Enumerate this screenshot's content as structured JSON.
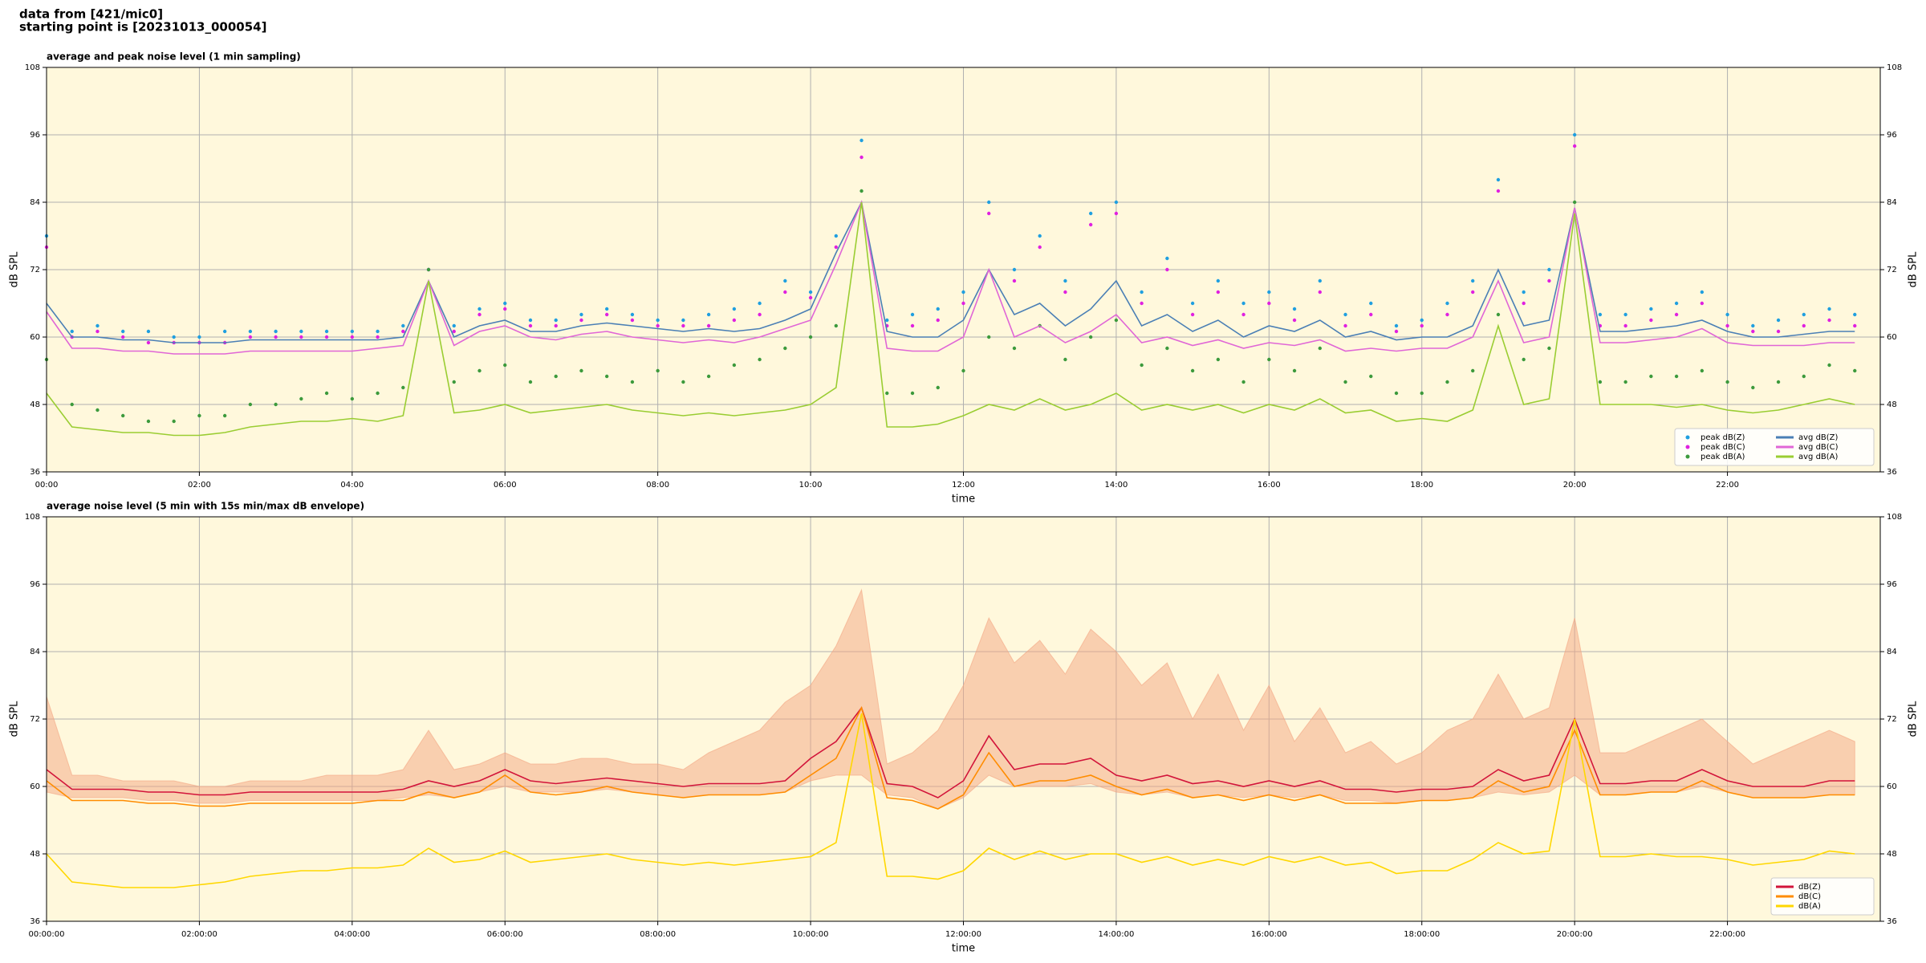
{
  "header": [
    "data from [421/mic0]",
    "starting point is [20231013_000054]"
  ],
  "chart_data": [
    {
      "type": "line",
      "title": "average and peak noise level (1 min sampling)",
      "xlabel": "time",
      "ylabel": "dB SPL",
      "grid": true,
      "legend": "lower right",
      "background": "#fff8dc",
      "xlim": [
        0,
        1440
      ],
      "ylim": [
        36,
        108
      ],
      "yticks": [
        36,
        48,
        60,
        72,
        84,
        96,
        108
      ],
      "xticks": [
        {
          "value": 0,
          "label": "00:00"
        },
        {
          "value": 120,
          "label": "02:00"
        },
        {
          "value": 240,
          "label": "04:00"
        },
        {
          "value": 360,
          "label": "06:00"
        },
        {
          "value": 480,
          "label": "08:00"
        },
        {
          "value": 600,
          "label": "10:00"
        },
        {
          "value": 720,
          "label": "12:00"
        },
        {
          "value": 840,
          "label": "14:00"
        },
        {
          "value": 960,
          "label": "16:00"
        },
        {
          "value": 1080,
          "label": "18:00"
        },
        {
          "value": 1200,
          "label": "20:00"
        },
        {
          "value": 1320,
          "label": "22:00"
        }
      ],
      "x": [
        0,
        20,
        40,
        60,
        80,
        100,
        120,
        140,
        160,
        180,
        200,
        220,
        240,
        260,
        280,
        300,
        320,
        340,
        360,
        380,
        400,
        420,
        440,
        460,
        480,
        500,
        520,
        540,
        560,
        580,
        600,
        620,
        640,
        660,
        680,
        700,
        720,
        740,
        760,
        780,
        800,
        820,
        840,
        860,
        880,
        900,
        920,
        940,
        960,
        980,
        1000,
        1020,
        1040,
        1060,
        1080,
        1100,
        1120,
        1140,
        1160,
        1180,
        1200,
        1220,
        1240,
        1260,
        1280,
        1300,
        1320,
        1340,
        1360,
        1380,
        1400,
        1420
      ],
      "series": [
        {
          "name": "peak dB(Z)",
          "style": "points",
          "color": "#1f9fe0",
          "values": [
            78,
            61,
            62,
            61,
            61,
            60,
            60,
            61,
            61,
            61,
            61,
            61,
            61,
            61,
            62,
            72,
            62,
            65,
            66,
            63,
            63,
            64,
            65,
            64,
            63,
            63,
            64,
            65,
            66,
            70,
            68,
            78,
            95,
            63,
            64,
            65,
            68,
            84,
            72,
            78,
            70,
            82,
            84,
            68,
            74,
            66,
            70,
            66,
            68,
            65,
            70,
            64,
            66,
            62,
            63,
            66,
            70,
            88,
            68,
            72,
            96,
            64,
            64,
            65,
            66,
            68,
            64,
            62,
            63,
            64,
            65,
            64
          ]
        },
        {
          "name": "peak dB(C)",
          "style": "points",
          "color": "#e020e0",
          "values": [
            76,
            60,
            61,
            60,
            59,
            59,
            59,
            59,
            60,
            60,
            60,
            60,
            60,
            60,
            61,
            72,
            61,
            64,
            65,
            62,
            62,
            63,
            64,
            63,
            62,
            62,
            62,
            63,
            64,
            68,
            67,
            76,
            92,
            62,
            62,
            63,
            66,
            82,
            70,
            76,
            68,
            80,
            82,
            66,
            72,
            64,
            68,
            64,
            66,
            63,
            68,
            62,
            64,
            61,
            62,
            64,
            68,
            86,
            66,
            70,
            94,
            62,
            62,
            63,
            64,
            66,
            62,
            61,
            61,
            62,
            63,
            62
          ]
        },
        {
          "name": "peak dB(A)",
          "style": "points",
          "color": "#3c9a3c",
          "values": [
            56,
            48,
            47,
            46,
            45,
            45,
            46,
            46,
            48,
            48,
            49,
            50,
            49,
            50,
            51,
            72,
            52,
            54,
            55,
            52,
            53,
            54,
            53,
            52,
            54,
            52,
            53,
            55,
            56,
            58,
            60,
            62,
            86,
            50,
            50,
            51,
            54,
            60,
            58,
            62,
            56,
            60,
            63,
            55,
            58,
            54,
            56,
            52,
            56,
            54,
            58,
            52,
            53,
            50,
            50,
            52,
            54,
            64,
            56,
            58,
            84,
            52,
            52,
            53,
            53,
            54,
            52,
            51,
            52,
            53,
            55,
            54
          ]
        },
        {
          "name": "avg dB(Z)",
          "style": "line",
          "color": "#4a7fb5",
          "values": [
            66,
            60,
            60,
            59.5,
            59.5,
            59,
            59,
            59,
            59.5,
            59.5,
            59.5,
            59.5,
            59.5,
            59.5,
            60,
            70,
            60,
            62,
            63,
            61,
            61,
            62,
            62.5,
            62,
            61.5,
            61,
            61.5,
            61,
            61.5,
            63,
            65,
            75,
            84,
            61,
            60,
            60,
            63,
            72,
            64,
            66,
            62,
            65,
            70,
            62,
            64,
            61,
            63,
            60,
            62,
            61,
            63,
            60,
            61,
            59.5,
            60,
            60,
            62,
            72,
            62,
            63,
            83,
            61,
            61,
            61.5,
            62,
            63,
            61,
            60,
            60,
            60.5,
            61,
            61
          ]
        },
        {
          "name": "avg dB(C)",
          "style": "line",
          "color": "#e066d6",
          "values": [
            64.5,
            58,
            58,
            57.5,
            57.5,
            57,
            57,
            57,
            57.5,
            57.5,
            57.5,
            57.5,
            57.5,
            58,
            58.5,
            70,
            58.5,
            61,
            62,
            60,
            59.5,
            60.5,
            61,
            60,
            59.5,
            59,
            59.5,
            59,
            60,
            61.5,
            63,
            73,
            84,
            58,
            57.5,
            57.5,
            60,
            72,
            60,
            62,
            59,
            61,
            64,
            59,
            60,
            58.5,
            59.5,
            58,
            59,
            58.5,
            59.5,
            57.5,
            58,
            57.5,
            58,
            58,
            60,
            70,
            59,
            60,
            83,
            59,
            59,
            59.5,
            60,
            61.5,
            59,
            58.5,
            58.5,
            58.5,
            59,
            59
          ]
        },
        {
          "name": "avg dB(A)",
          "style": "line",
          "color": "#9acd32",
          "values": [
            50,
            44,
            43.5,
            43,
            43,
            42.5,
            42.5,
            43,
            44,
            44.5,
            45,
            45,
            45.5,
            45,
            46,
            70,
            46.5,
            47,
            48,
            46.5,
            47,
            47.5,
            48,
            47,
            46.5,
            46,
            46.5,
            46,
            46.5,
            47,
            48,
            51,
            84,
            44,
            44,
            44.5,
            46,
            48,
            47,
            49,
            47,
            48,
            50,
            47,
            48,
            47,
            48,
            46.5,
            48,
            47,
            49,
            46.5,
            47,
            45,
            45.5,
            45,
            47,
            62,
            48,
            49,
            82,
            48,
            48,
            48,
            47.5,
            48,
            47,
            46.5,
            47,
            48,
            49,
            48
          ]
        }
      ]
    },
    {
      "type": "line",
      "title": "average noise level (5 min with 15s min/max dB envelope)",
      "xlabel": "time",
      "ylabel": "dB SPL",
      "grid": true,
      "legend": "lower right",
      "background": "#fff8dc",
      "xlim": [
        0,
        1440
      ],
      "ylim": [
        36,
        108
      ],
      "yticks": [
        36,
        48,
        60,
        72,
        84,
        96,
        108
      ],
      "xticks": [
        {
          "value": 0,
          "label": "00:00:00"
        },
        {
          "value": 120,
          "label": "02:00:00"
        },
        {
          "value": 240,
          "label": "04:00:00"
        },
        {
          "value": 360,
          "label": "06:00:00"
        },
        {
          "value": 480,
          "label": "08:00:00"
        },
        {
          "value": 600,
          "label": "10:00:00"
        },
        {
          "value": 720,
          "label": "12:00:00"
        },
        {
          "value": 840,
          "label": "14:00:00"
        },
        {
          "value": 960,
          "label": "16:00:00"
        },
        {
          "value": 1080,
          "label": "18:00:00"
        },
        {
          "value": 1200,
          "label": "20:00:00"
        },
        {
          "value": 1320,
          "label": "22:00:00"
        }
      ],
      "x": [
        0,
        20,
        40,
        60,
        80,
        100,
        120,
        140,
        160,
        180,
        200,
        220,
        240,
        260,
        280,
        300,
        320,
        340,
        360,
        380,
        400,
        420,
        440,
        460,
        480,
        500,
        520,
        540,
        560,
        580,
        600,
        620,
        640,
        660,
        680,
        700,
        720,
        740,
        760,
        780,
        800,
        820,
        840,
        860,
        880,
        900,
        920,
        940,
        960,
        980,
        1000,
        1020,
        1040,
        1060,
        1080,
        1100,
        1120,
        1140,
        1160,
        1180,
        1200,
        1220,
        1240,
        1260,
        1280,
        1300,
        1320,
        1340,
        1360,
        1380,
        1400,
        1420
      ],
      "envelope": {
        "color": "#f4a582",
        "max": [
          76,
          62,
          62,
          61,
          61,
          61,
          60,
          60,
          61,
          61,
          61,
          62,
          62,
          62,
          63,
          70,
          63,
          64,
          66,
          64,
          64,
          65,
          65,
          64,
          64,
          63,
          66,
          68,
          70,
          75,
          78,
          85,
          95,
          64,
          66,
          70,
          78,
          90,
          82,
          86,
          80,
          88,
          84,
          78,
          82,
          72,
          80,
          70,
          78,
          68,
          74,
          66,
          68,
          64,
          66,
          70,
          72,
          80,
          72,
          74,
          90,
          66,
          66,
          68,
          70,
          72,
          68,
          64,
          66,
          68,
          70,
          68
        ],
        "min": [
          59,
          58,
          58,
          58,
          57.5,
          57.5,
          57,
          57,
          57.5,
          57.5,
          57.5,
          57.5,
          57.5,
          57.5,
          58,
          58.5,
          58,
          59,
          60,
          59,
          59,
          59,
          59.5,
          59,
          58.5,
          58,
          58.5,
          58.5,
          58.5,
          59,
          61,
          62,
          62,
          58.5,
          58,
          56,
          58,
          62,
          60,
          60,
          60,
          60.5,
          59,
          58.5,
          59,
          58,
          58.5,
          58,
          58.5,
          58,
          58.5,
          57.5,
          57.5,
          57,
          57.5,
          57.5,
          58,
          59,
          58.5,
          59,
          62,
          58.5,
          58.5,
          59,
          59,
          60,
          59,
          58,
          58,
          58,
          58.5,
          58.5
        ]
      },
      "series": [
        {
          "name": "dB(Z)",
          "style": "line",
          "color": "#d2143a",
          "values": [
            63,
            59.5,
            59.5,
            59.5,
            59,
            59,
            58.5,
            58.5,
            59,
            59,
            59,
            59,
            59,
            59,
            59.5,
            61,
            60,
            61,
            63,
            61,
            60.5,
            61,
            61.5,
            61,
            60.5,
            60,
            60.5,
            60.5,
            60.5,
            61,
            65,
            68,
            74,
            60.5,
            60,
            58,
            61,
            69,
            63,
            64,
            64,
            65,
            62,
            61,
            62,
            60.5,
            61,
            60,
            61,
            60,
            61,
            59.5,
            59.5,
            59,
            59.5,
            59.5,
            60,
            63,
            61,
            62,
            72,
            60.5,
            60.5,
            61,
            61,
            63,
            61,
            60,
            60,
            60,
            61,
            61
          ]
        },
        {
          "name": "dB(C)",
          "style": "line",
          "color": "#ff8c00",
          "values": [
            61,
            57.5,
            57.5,
            57.5,
            57,
            57,
            56.5,
            56.5,
            57,
            57,
            57,
            57,
            57,
            57.5,
            57.5,
            59,
            58,
            59,
            62,
            59,
            58.5,
            59,
            60,
            59,
            58.5,
            58,
            58.5,
            58.5,
            58.5,
            59,
            62,
            65,
            74,
            58,
            57.5,
            56,
            58.5,
            66,
            60,
            61,
            61,
            62,
            60,
            58.5,
            59.5,
            58,
            58.5,
            57.5,
            58.5,
            57.5,
            58.5,
            57,
            57,
            57,
            57.5,
            57.5,
            58,
            61,
            59,
            60,
            70,
            58.5,
            58.5,
            59,
            59,
            61,
            59,
            58,
            58,
            58,
            58.5,
            58.5
          ]
        },
        {
          "name": "dB(A)",
          "style": "line",
          "color": "#ffd700",
          "values": [
            48,
            43,
            42.5,
            42,
            42,
            42,
            42.5,
            43,
            44,
            44.5,
            45,
            45,
            45.5,
            45.5,
            46,
            49,
            46.5,
            47,
            48.5,
            46.5,
            47,
            47.5,
            48,
            47,
            46.5,
            46,
            46.5,
            46,
            46.5,
            47,
            47.5,
            50,
            73,
            44,
            44,
            43.5,
            45,
            49,
            47,
            48.5,
            47,
            48,
            48,
            46.5,
            47.5,
            46,
            47,
            46,
            47.5,
            46.5,
            47.5,
            46,
            46.5,
            44.5,
            45,
            45,
            47,
            50,
            48,
            48.5,
            72,
            47.5,
            47.5,
            48,
            47.5,
            47.5,
            47,
            46,
            46.5,
            47,
            48.5,
            48
          ]
        }
      ]
    }
  ]
}
